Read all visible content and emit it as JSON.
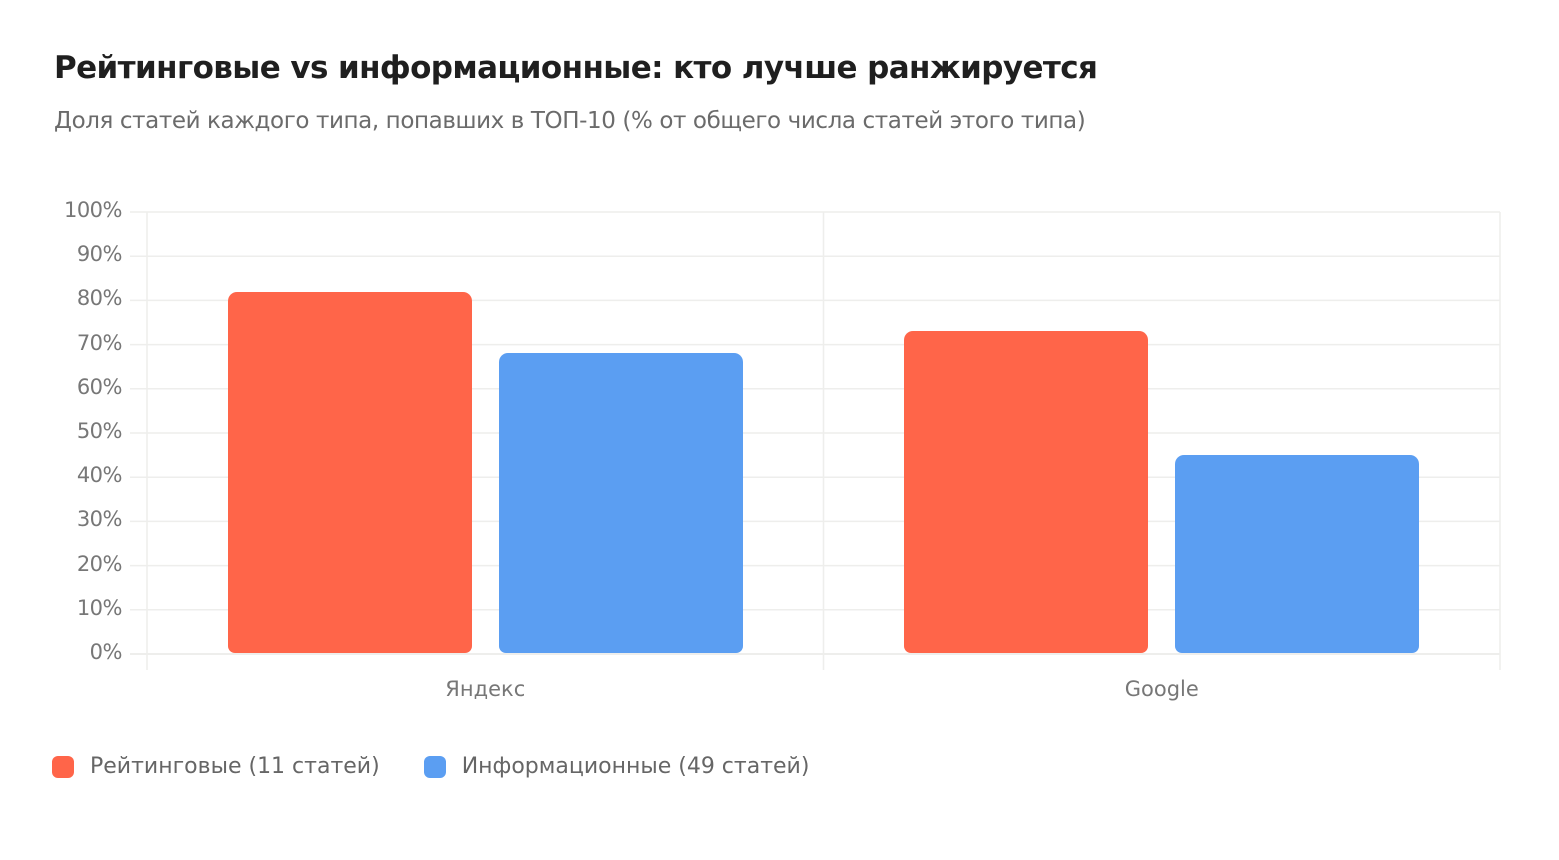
{
  "header": {
    "title": "Рейтинговые vs информационные: кто лучше ранжируется",
    "subtitle": "Доля статей каждого типа, попавших в ТОП-10 (% от общего числа статей этого типа)"
  },
  "colors": {
    "series1": "#ff6549",
    "series2": "#5b9ef2",
    "grid": "#eeeeec",
    "tick": "#777777"
  },
  "chart_data": {
    "type": "bar",
    "title": "Рейтинговые vs информационные: кто лучше ранжируется",
    "subtitle": "Доля статей каждого типа, попавших в ТОП-10 (% от общего числа статей этого типа)",
    "categories": [
      "Яндекс",
      "Google"
    ],
    "series": [
      {
        "name": "Рейтинговые (11 статей)",
        "values": [
          82,
          73
        ],
        "color": "#ff6549"
      },
      {
        "name": "Информационные (49 статей)",
        "values": [
          68,
          45
        ],
        "color": "#5b9ef2"
      }
    ],
    "xlabel": "",
    "ylabel": "",
    "ylim": [
      0,
      100
    ],
    "yticks": [
      "0%",
      "10%",
      "20%",
      "30%",
      "40%",
      "50%",
      "60%",
      "70%",
      "80%",
      "90%",
      "100%"
    ],
    "grid": true,
    "legend_position": "bottom-left"
  },
  "legend": [
    {
      "label": "Рейтинговые (11 статей)"
    },
    {
      "label": "Информационные (49 статей)"
    }
  ]
}
